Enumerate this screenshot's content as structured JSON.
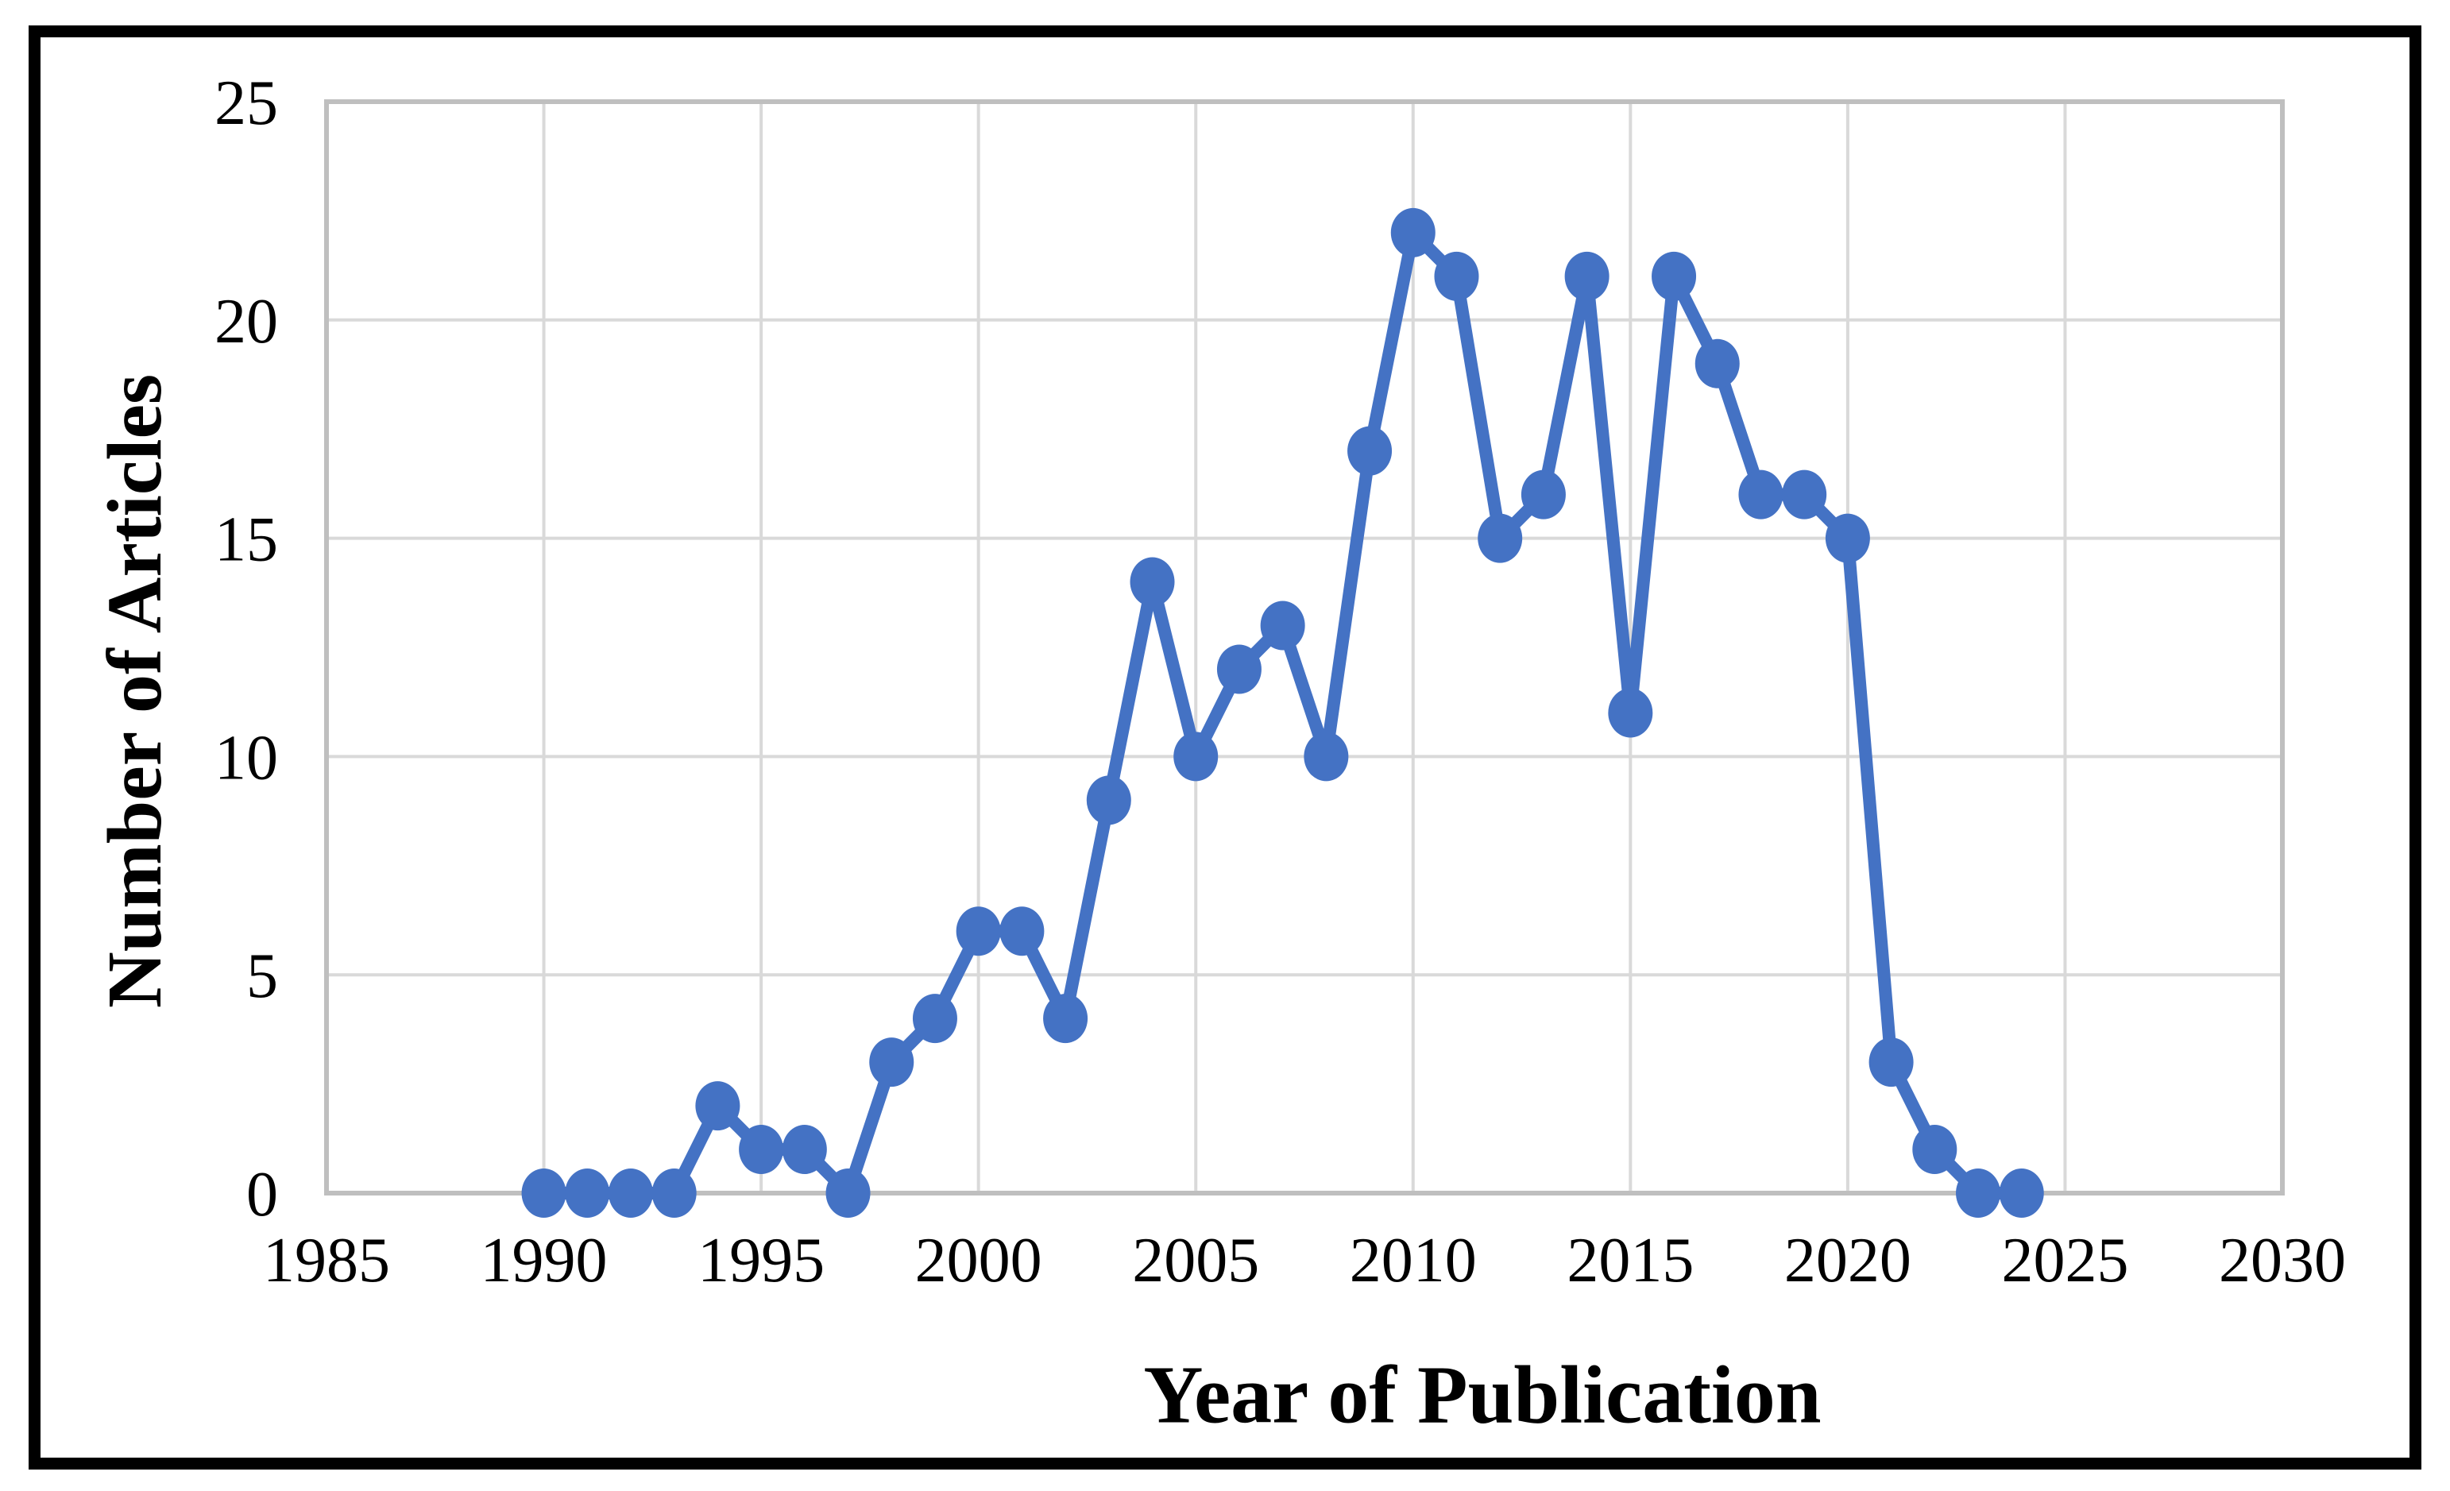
{
  "figure": {
    "background_color": "#ffffff",
    "border_color": "#000000"
  },
  "chart_data": {
    "type": "line",
    "title": "",
    "xlabel": "Year of Publication",
    "ylabel": "Number of Articles",
    "x": [
      1990,
      1991,
      1992,
      1993,
      1994,
      1995,
      1996,
      1997,
      1998,
      1999,
      2000,
      2001,
      2002,
      2003,
      2004,
      2005,
      2006,
      2007,
      2008,
      2009,
      2010,
      2011,
      2012,
      2013,
      2014,
      2015,
      2016,
      2017,
      2018,
      2019,
      2020,
      2021,
      2022,
      2023,
      2024
    ],
    "values": [
      0,
      0,
      0,
      0,
      2,
      1,
      1,
      0,
      3,
      4,
      6,
      6,
      4,
      9,
      14,
      10,
      12,
      13,
      10,
      17,
      22,
      21,
      15,
      16,
      21,
      11,
      21,
      19,
      16,
      16,
      15,
      3,
      1,
      0,
      0
    ],
    "xlim": [
      1985,
      2030
    ],
    "ylim": [
      0,
      25
    ],
    "x_ticks": [
      1985,
      1990,
      1995,
      2000,
      2005,
      2010,
      2015,
      2020,
      2025,
      2030
    ],
    "y_ticks": [
      0,
      5,
      10,
      15,
      20,
      25
    ],
    "grid": true,
    "legend": "none",
    "line_color": "#4472C4",
    "marker_color": "#4472C4",
    "marker": "circle",
    "gridline_color": "#D9D9D9",
    "plot_border_color": "#BFBFBF"
  }
}
